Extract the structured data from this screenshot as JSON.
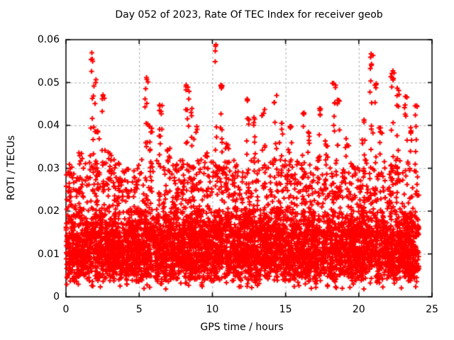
{
  "chart_data": {
    "type": "scatter",
    "title": "Day 052 of 2023, Rate Of TEC Index for receiver geob",
    "xlabel": "GPS time / hours",
    "ylabel": "ROTI / TECUs",
    "xlim": [
      0,
      25
    ],
    "ylim": [
      0,
      0.06
    ],
    "xticks": [
      0,
      5,
      10,
      15,
      20,
      25
    ],
    "xtick_labels": [
      "0",
      "5",
      "10",
      "15",
      "20",
      "25"
    ],
    "yticks": [
      0,
      0.01,
      0.02,
      0.03,
      0.04,
      0.05,
      0.06
    ],
    "ytick_labels": [
      "0",
      "0.01",
      "0.02",
      "0.03",
      "0.04",
      "0.05",
      "0.06"
    ],
    "grid": {
      "show": true,
      "style": "dashed",
      "color": "#a8a8a8"
    },
    "legend": "none",
    "marker": {
      "shape": "plus",
      "color": "#ff0000",
      "size": 7,
      "stroke_width": 2
    },
    "frame_color": "#000000",
    "background_color": "#ffffff",
    "text_color": "#000000",
    "series": [
      {
        "name": "ROTI",
        "summary": {
          "t_min": 0.0,
          "t_max": 24.1,
          "dense_band": [
            0.004,
            0.02
          ],
          "max_value": 0.059,
          "max_value_time": 10.3
        },
        "points_spec": {
          "seed": 52,
          "t_range": [
            0.0,
            24.1
          ],
          "baseline": {
            "count": 4300,
            "y_min": 0.0035,
            "y_max": 0.021,
            "skew": 1.35
          },
          "mid_layer": {
            "count": 1600,
            "y_min": 0.014,
            "y_max": 0.032,
            "exponent": 1.8
          },
          "low_tail": {
            "count": 70,
            "y_min": 0.0018,
            "y_max": 0.004
          },
          "bursts": [
            [
              0.3,
              0.03,
              12
            ],
            [
              1.0,
              0.034,
              14
            ],
            [
              1.75,
              0.057,
              10
            ],
            [
              1.95,
              0.051,
              12
            ],
            [
              2.2,
              0.04,
              10
            ],
            [
              2.55,
              0.048,
              14
            ],
            [
              3.0,
              0.034,
              10
            ],
            [
              3.6,
              0.028,
              8
            ],
            [
              4.2,
              0.031,
              10
            ],
            [
              4.8,
              0.028,
              8
            ],
            [
              5.5,
              0.052,
              16
            ],
            [
              5.8,
              0.04,
              10
            ],
            [
              6.45,
              0.046,
              14
            ],
            [
              7.0,
              0.035,
              10
            ],
            [
              7.6,
              0.031,
              8
            ],
            [
              8.3,
              0.05,
              16
            ],
            [
              8.65,
              0.044,
              12
            ],
            [
              9.0,
              0.04,
              10
            ],
            [
              9.6,
              0.034,
              8
            ],
            [
              10.3,
              0.059,
              14
            ],
            [
              10.6,
              0.05,
              12
            ],
            [
              11.0,
              0.036,
              10
            ],
            [
              11.5,
              0.032,
              8
            ],
            [
              12.4,
              0.047,
              14
            ],
            [
              12.9,
              0.042,
              10
            ],
            [
              13.5,
              0.044,
              12
            ],
            [
              14.3,
              0.047,
              12
            ],
            [
              14.7,
              0.041,
              10
            ],
            [
              15.3,
              0.04,
              10
            ],
            [
              16.2,
              0.043,
              12
            ],
            [
              16.6,
              0.039,
              8
            ],
            [
              17.3,
              0.044,
              12
            ],
            [
              17.8,
              0.037,
              8
            ],
            [
              18.3,
              0.05,
              16
            ],
            [
              18.65,
              0.046,
              12
            ],
            [
              19.2,
              0.037,
              8
            ],
            [
              20.3,
              0.042,
              10
            ],
            [
              20.85,
              0.057,
              14
            ],
            [
              21.1,
              0.05,
              14
            ],
            [
              21.5,
              0.04,
              8
            ],
            [
              22.3,
              0.053,
              16
            ],
            [
              22.7,
              0.049,
              14
            ],
            [
              23.2,
              0.048,
              12
            ],
            [
              23.6,
              0.04,
              8
            ],
            [
              23.9,
              0.045,
              10
            ]
          ]
        }
      }
    ]
  }
}
